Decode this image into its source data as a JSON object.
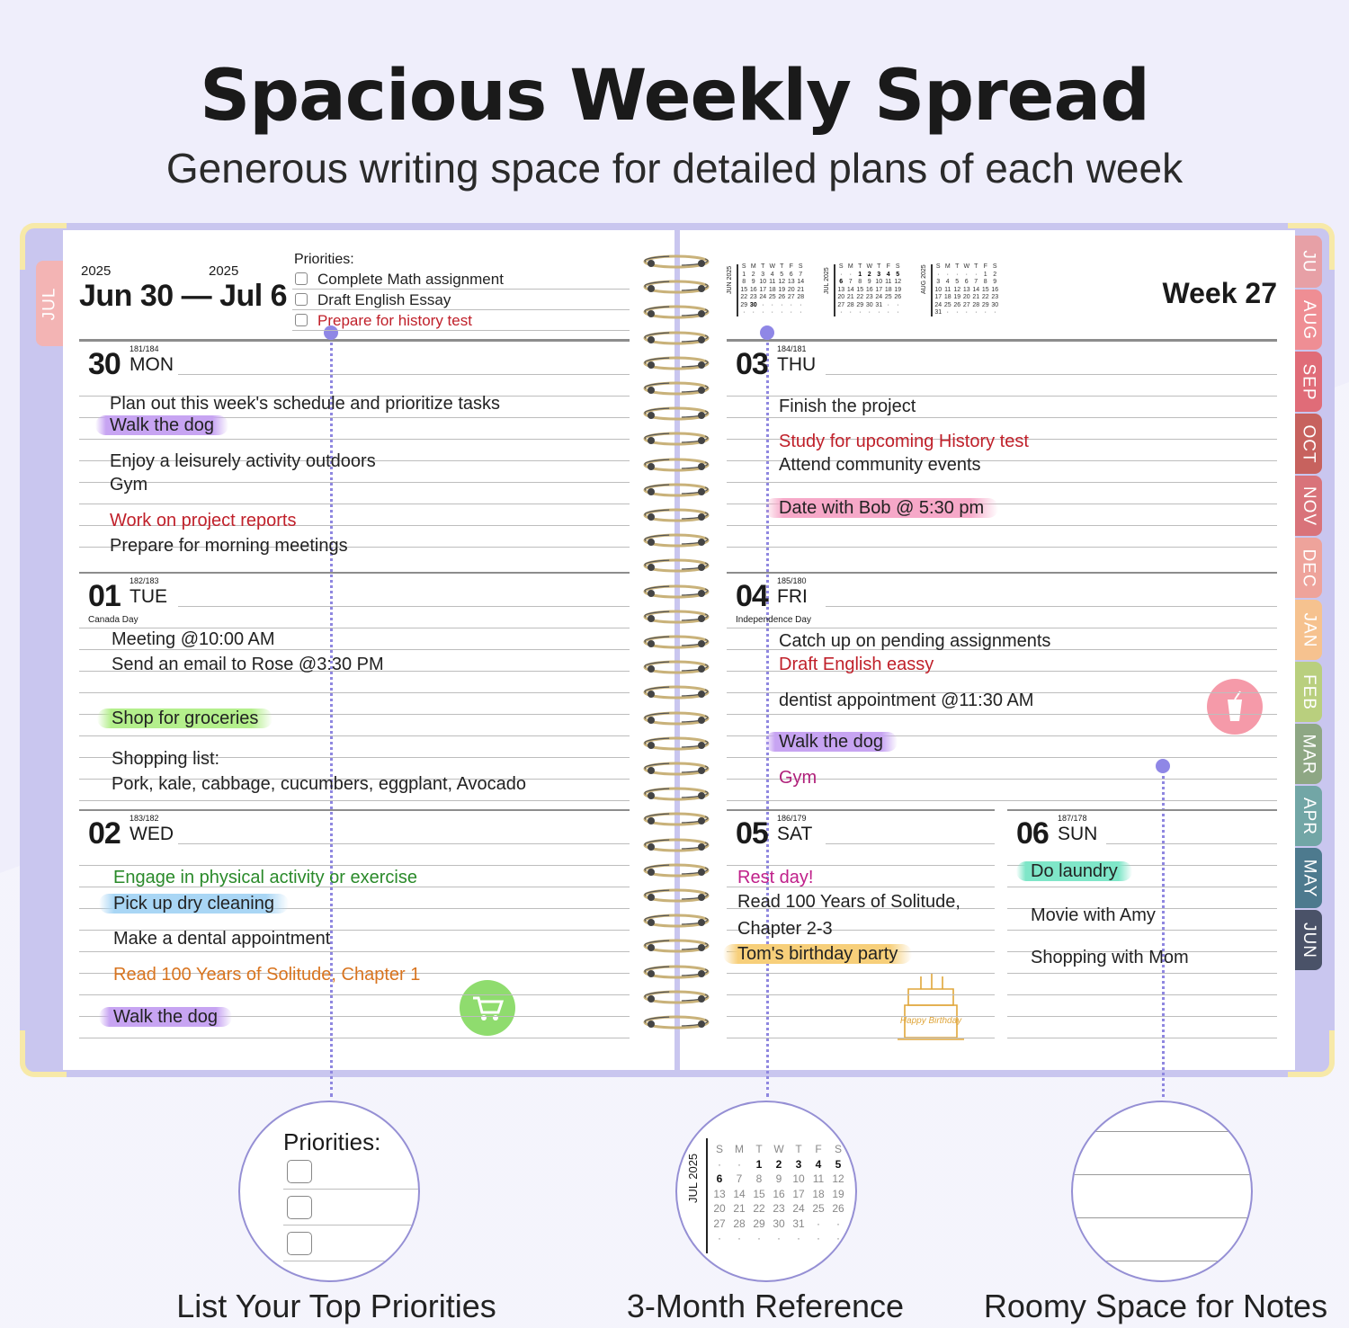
{
  "header": {
    "title": "Spacious Weekly Spread",
    "subtitle": "Generous writing space for detailed plans of each week"
  },
  "colors": {
    "accent": "#8f87e6",
    "cover": "#c9c6ef",
    "corner": "#f7e9a8"
  },
  "left_page": {
    "tab": "JUL",
    "start_year": "2025",
    "end_year": "2025",
    "range": "Jun 30 — Jul 6",
    "priorities_label": "Priorities:",
    "priorities": [
      {
        "text": "Complete Math assignment",
        "color": "#222"
      },
      {
        "text": "Draft English Essay",
        "color": "#222"
      },
      {
        "text": "Prepare for history test",
        "color": "#c0202a"
      }
    ],
    "days": [
      {
        "num": "30",
        "name": "MON",
        "doy": "181/184",
        "holiday": "",
        "entries": [
          {
            "text": "Plan out this week's schedule and prioritize tasks",
            "color": "#222",
            "highlight": ""
          },
          {
            "text": "Walk the dog",
            "color": "#222",
            "highlight": "#c7a4f2"
          },
          {
            "text": "Enjoy a leisurely activity outdoors",
            "color": "#222",
            "highlight": ""
          },
          {
            "text": "Gym",
            "color": "#222",
            "highlight": ""
          },
          {
            "text": "Work on project reports",
            "color": "#c0202a",
            "highlight": ""
          },
          {
            "text": "Prepare for morning meetings",
            "color": "#222",
            "highlight": ""
          }
        ]
      },
      {
        "num": "01",
        "name": "TUE",
        "doy": "182/183",
        "holiday": "Canada Day",
        "entries": [
          {
            "text": "Meeting @10:00 AM",
            "color": "#222",
            "highlight": ""
          },
          {
            "text": "Send an email to Rose @3:30 PM",
            "color": "#222",
            "highlight": ""
          },
          {
            "text": "Shop for groceries",
            "color": "#222",
            "highlight": "#b4ef8c"
          },
          {
            "text": "Shopping list:",
            "color": "#222",
            "highlight": ""
          },
          {
            "text": "Pork, kale, cabbage, cucumbers, eggplant, Avocado",
            "color": "#222",
            "highlight": ""
          }
        ]
      },
      {
        "num": "02",
        "name": "WED",
        "doy": "183/182",
        "holiday": "",
        "entries": [
          {
            "text": "Engage in physical activity or exercise",
            "color": "#2a8a2a",
            "highlight": ""
          },
          {
            "text": "Pick up dry cleaning",
            "color": "#222",
            "highlight": "#a9d6f5"
          },
          {
            "text": "Make a dental appointment",
            "color": "#222",
            "highlight": ""
          },
          {
            "text": "Read 100 Years of Solitude, Chapter 1",
            "color": "#d8741f",
            "highlight": ""
          },
          {
            "text": "Walk the dog",
            "color": "#222",
            "highlight": "#c7a4f2"
          }
        ]
      }
    ]
  },
  "right_page": {
    "week": "Week 27",
    "tabs": [
      {
        "label": "JU",
        "color": "#e7a0a6"
      },
      {
        "label": "AUG",
        "color": "#ef8e94"
      },
      {
        "label": "SEP",
        "color": "#e06c78"
      },
      {
        "label": "OCT",
        "color": "#c7625e"
      },
      {
        "label": "NOV",
        "color": "#d9737a"
      },
      {
        "label": "DEC",
        "color": "#eea39b"
      },
      {
        "label": "JAN",
        "color": "#f6c28f"
      },
      {
        "label": "FEB",
        "color": "#b9cf7e"
      },
      {
        "label": "MAR",
        "color": "#8ea784"
      },
      {
        "label": "APR",
        "color": "#72a6a6"
      },
      {
        "label": "MAY",
        "color": "#4d7a8e"
      },
      {
        "label": "JUN",
        "color": "#4a5268"
      }
    ],
    "calendars": [
      {
        "label": "JUN 2025",
        "head": [
          "S",
          "M",
          "T",
          "W",
          "T",
          "F",
          "S"
        ],
        "rows": [
          [
            "1",
            "2",
            "3",
            "4",
            "5",
            "6",
            "7"
          ],
          [
            "8",
            "9",
            "10",
            "11",
            "12",
            "13",
            "14"
          ],
          [
            "15",
            "16",
            "17",
            "18",
            "19",
            "20",
            "21"
          ],
          [
            "22",
            "23",
            "24",
            "25",
            "26",
            "27",
            "28"
          ],
          [
            "29",
            "30",
            "·",
            "·",
            "·",
            "·",
            "·"
          ],
          [
            "·",
            "·",
            "·",
            "·",
            "·",
            "·",
            "·"
          ]
        ],
        "bold": [
          "30"
        ]
      },
      {
        "label": "JUL 2025",
        "head": [
          "S",
          "M",
          "T",
          "W",
          "T",
          "F",
          "S"
        ],
        "rows": [
          [
            "·",
            "·",
            "1",
            "2",
            "3",
            "4",
            "5"
          ],
          [
            "6",
            "7",
            "8",
            "9",
            "10",
            "11",
            "12"
          ],
          [
            "13",
            "14",
            "15",
            "16",
            "17",
            "18",
            "19"
          ],
          [
            "20",
            "21",
            "22",
            "23",
            "24",
            "25",
            "26"
          ],
          [
            "27",
            "28",
            "29",
            "30",
            "31",
            "·",
            "·"
          ],
          [
            "·",
            "·",
            "·",
            "·",
            "·",
            "·",
            "·"
          ]
        ],
        "bold": [
          "1",
          "2",
          "3",
          "4",
          "5",
          "6"
        ]
      },
      {
        "label": "AUG 2025",
        "head": [
          "S",
          "M",
          "T",
          "W",
          "T",
          "F",
          "S"
        ],
        "rows": [
          [
            "·",
            "·",
            "·",
            "·",
            "·",
            "1",
            "2"
          ],
          [
            "3",
            "4",
            "5",
            "6",
            "7",
            "8",
            "9"
          ],
          [
            "10",
            "11",
            "12",
            "13",
            "14",
            "15",
            "16"
          ],
          [
            "17",
            "18",
            "19",
            "20",
            "21",
            "22",
            "23"
          ],
          [
            "24",
            "25",
            "26",
            "27",
            "28",
            "29",
            "30"
          ],
          [
            "31",
            "·",
            "·",
            "·",
            "·",
            "·",
            "·"
          ]
        ],
        "bold": []
      }
    ],
    "days": [
      {
        "num": "03",
        "name": "THU",
        "doy": "184/181",
        "holiday": "",
        "entries": [
          {
            "text": "Finish the project",
            "color": "#222",
            "highlight": ""
          },
          {
            "text": "Study for upcoming History test",
            "color": "#c0202a",
            "highlight": ""
          },
          {
            "text": "Attend community events",
            "color": "#222",
            "highlight": ""
          },
          {
            "text": "Date with Bob @ 5:30 pm",
            "color": "#222",
            "highlight": "#f6a8c8"
          }
        ]
      },
      {
        "num": "04",
        "name": "FRI",
        "doy": "185/180",
        "holiday": "Independence Day",
        "entries": [
          {
            "text": "Catch up on pending assignments",
            "color": "#222",
            "highlight": ""
          },
          {
            "text": "Draft English eassy",
            "color": "#c0202a",
            "highlight": ""
          },
          {
            "text": "dentist appointment @11:30 AM",
            "color": "#222",
            "highlight": ""
          },
          {
            "text": "Walk the dog",
            "color": "#222",
            "highlight": "#c7a4f2"
          },
          {
            "text": "Gym",
            "color": "#b0207a",
            "highlight": ""
          }
        ]
      },
      {
        "num": "05",
        "name": "SAT",
        "doy": "186/179",
        "holiday": "",
        "entries": [
          {
            "text": "Rest day!",
            "color": "#c0208a",
            "highlight": ""
          },
          {
            "text": "Read 100 Years of Solitude,",
            "color": "#222",
            "highlight": ""
          },
          {
            "text": "Chapter 2-3",
            "color": "#222",
            "highlight": ""
          },
          {
            "text": "Tom's birthday party",
            "color": "#222",
            "highlight": "#f7cf7a"
          }
        ]
      },
      {
        "num": "06",
        "name": "SUN",
        "doy": "187/178",
        "holiday": "",
        "entries": [
          {
            "text": "Do laundry",
            "color": "#222",
            "highlight": "#7fe6c8"
          },
          {
            "text": "Movie with Amy",
            "color": "#222",
            "highlight": ""
          },
          {
            "text": "Shopping with Mom",
            "color": "#222",
            "highlight": ""
          }
        ]
      }
    ],
    "cake_text": "Happy Birthday"
  },
  "features": [
    {
      "caption": "List Your Top Priorities",
      "inset_label": "Priorities:"
    },
    {
      "caption": "3-Month Reference"
    },
    {
      "caption": "Roomy Space for Notes"
    }
  ]
}
